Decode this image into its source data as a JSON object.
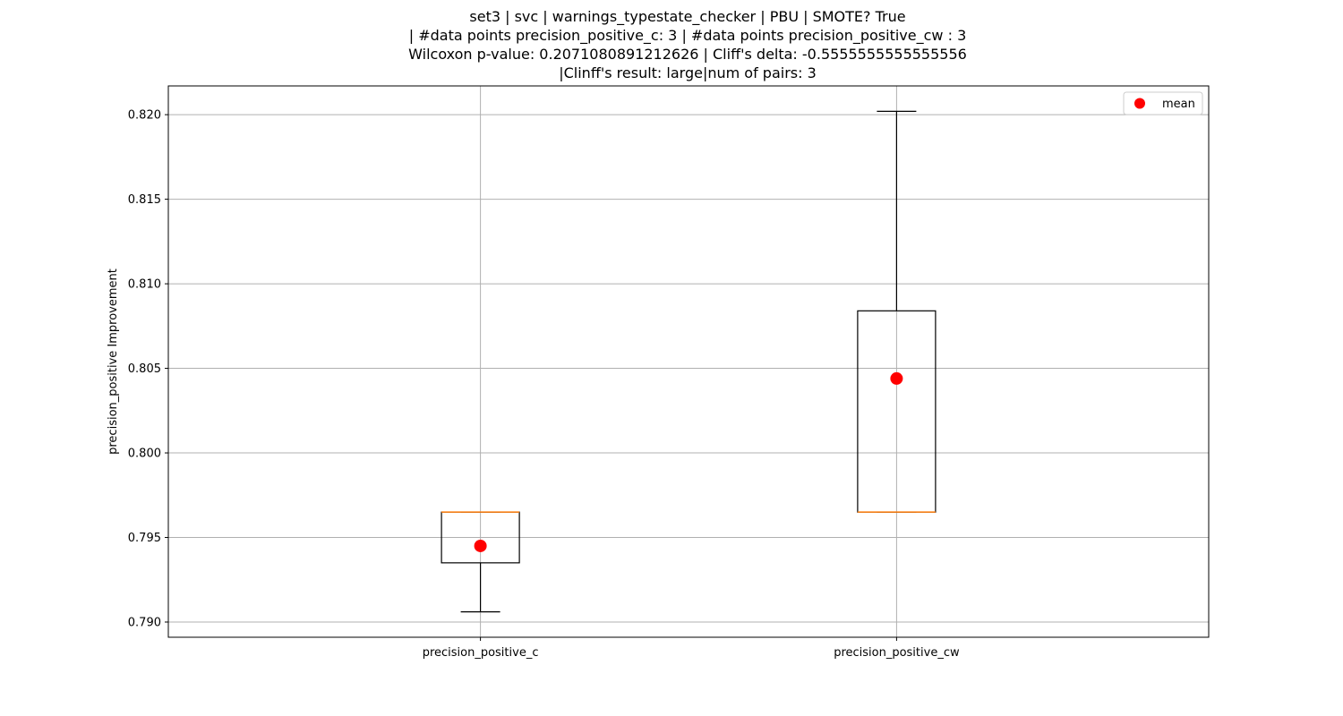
{
  "chart_data": {
    "type": "box",
    "title_lines": [
      "set3 | svc | warnings_typestate_checker | PBU | SMOTE? True",
      "| #data points precision_positive_c: 3 | #data points precision_positive_cw : 3",
      "Wilcoxon p-value: 0.2071080891212626 | Cliff's delta: -0.5555555555555556",
      "|Clinff's result: large|num of pairs: 3"
    ],
    "xlabel": "",
    "ylabel": "precision_positive Improvement",
    "categories": [
      "precision_positive_c",
      "precision_positive_cw"
    ],
    "boxes": [
      {
        "category": "precision_positive_c",
        "whisker_low": 0.7906,
        "q1": 0.7935,
        "median": 0.7965,
        "q3": 0.7965,
        "whisker_high": 0.7965,
        "mean": 0.7945
      },
      {
        "category": "precision_positive_cw",
        "whisker_low": 0.7965,
        "q1": 0.7965,
        "median": 0.7965,
        "q3": 0.8084,
        "whisker_high": 0.8202,
        "mean": 0.8044
      }
    ],
    "ylim": [
      0.7891,
      0.8217
    ],
    "yticks": [
      0.79,
      0.795,
      0.8,
      0.805,
      0.81,
      0.815,
      0.82
    ],
    "ytick_labels": [
      "0.790",
      "0.795",
      "0.800",
      "0.805",
      "0.810",
      "0.815",
      "0.820"
    ],
    "grid": true,
    "legend": {
      "position": "top-right",
      "entries": [
        {
          "label": "mean",
          "color": "#ff0000",
          "marker": "circle"
        }
      ]
    },
    "colors": {
      "box": "#000000",
      "median": "#ff7f0e",
      "mean": "#ff0000",
      "grid": "#b0b0b0"
    }
  }
}
